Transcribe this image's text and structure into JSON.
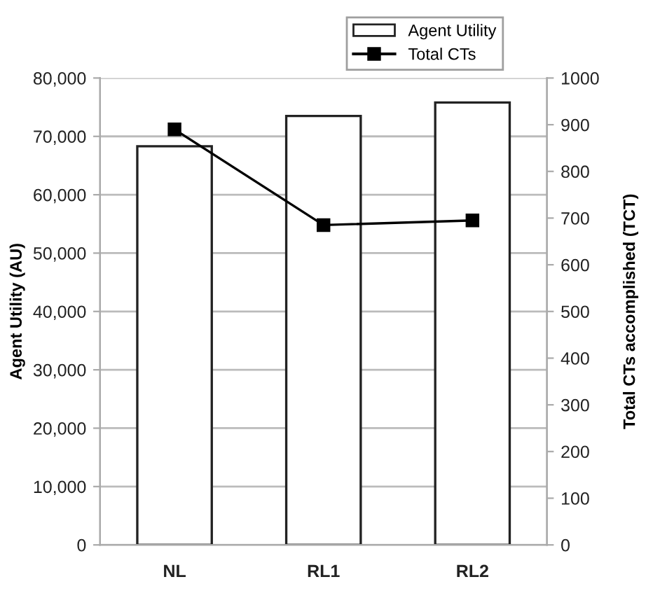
{
  "chart_data": {
    "type": "bar",
    "categories": [
      "NL",
      "RL1",
      "RL2"
    ],
    "series": [
      {
        "name": "Agent Utility",
        "color": "#ffffff",
        "values": [
          68300,
          73500,
          75800
        ]
      },
      {
        "name": "Total CTs",
        "type": "line",
        "axis": "y2",
        "color": "#000000",
        "marker": "square",
        "values": [
          890,
          685,
          695
        ]
      }
    ],
    "ylabel": "Agent Utility (AU)",
    "y2label": "Total CTs accomplished (TCT)",
    "ylim": [
      0,
      80000
    ],
    "yticks": [
      {
        "value": 0,
        "label": "0"
      },
      {
        "value": 10000,
        "label": "10,000"
      },
      {
        "value": 20000,
        "label": "20,000"
      },
      {
        "value": 30000,
        "label": "30,000"
      },
      {
        "value": 40000,
        "label": "40,000"
      },
      {
        "value": 50000,
        "label": "50,000"
      },
      {
        "value": 60000,
        "label": "60,000"
      },
      {
        "value": 70000,
        "label": "70,000"
      },
      {
        "value": 80000,
        "label": "80,000"
      }
    ],
    "y2lim": [
      0,
      1000
    ],
    "y2ticks": [
      0,
      100,
      200,
      300,
      400,
      500,
      600,
      700,
      800,
      900,
      1000
    ],
    "grid": "y",
    "legend": "top right"
  }
}
